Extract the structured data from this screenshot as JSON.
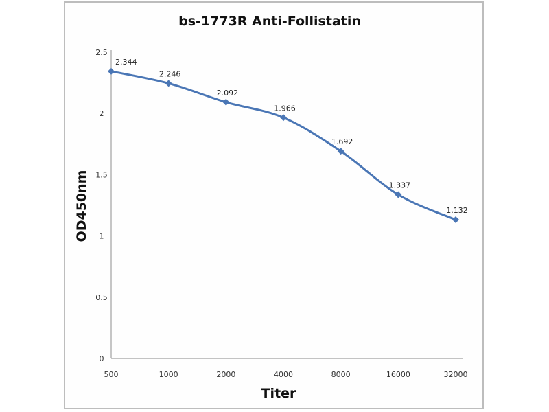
{
  "chart_data": {
    "type": "line",
    "title": "bs-1773R Anti-Follistatin",
    "xlabel": "Titer",
    "ylabel": "OD450nm",
    "categories": [
      "500",
      "1000",
      "2000",
      "4000",
      "8000",
      "16000",
      "32000"
    ],
    "series": [
      {
        "name": "OD450nm",
        "values": [
          2.344,
          2.246,
          2.092,
          1.966,
          1.692,
          1.337,
          1.132
        ],
        "data_labels": [
          "2.344",
          "2.246",
          "2.092",
          "1.966",
          "1.692",
          "1.337",
          "1.132"
        ],
        "color": "#4a76b5",
        "marker": "diamond",
        "smooth": true
      }
    ],
    "ylim": [
      0,
      2.5
    ],
    "yticks": [
      0,
      0.5,
      1,
      1.5,
      2,
      2.5
    ],
    "ytick_labels": [
      "0",
      "0.5",
      "1",
      "1.5",
      "2",
      "2.5"
    ],
    "grid": false,
    "legend": "none",
    "axis_color": "#a0a0a0",
    "frame_color": "#bdbdbd"
  }
}
